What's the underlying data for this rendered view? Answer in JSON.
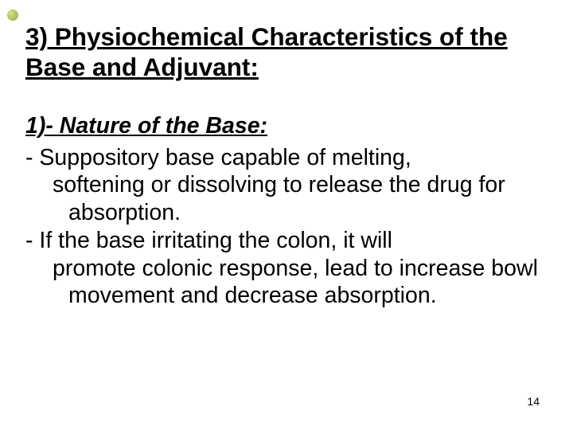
{
  "slide": {
    "title": "3) Physiochemical Characteristics of the Base and Adjuvant:",
    "subheading": "1)- Nature of the Base:",
    "bullets": [
      {
        "lead": "- ",
        "first_line": "Suppository base capable of melting,",
        "rest": "softening or dissolving to release the drug for absorption."
      },
      {
        "lead": "-  ",
        "first_line": "If the base irritating the colon, it will",
        "rest": "promote colonic response, lead to increase bowl movement and decrease absorption."
      }
    ],
    "page_number": "14",
    "colors": {
      "text": "#000000",
      "background": "#ffffff",
      "accent_dot_light": "#d6e28f",
      "accent_dot_dark": "#98a94a"
    },
    "fonts": {
      "title_size_pt": 31.5,
      "body_size_pt": 28.5,
      "page_num_size_pt": 14
    }
  }
}
